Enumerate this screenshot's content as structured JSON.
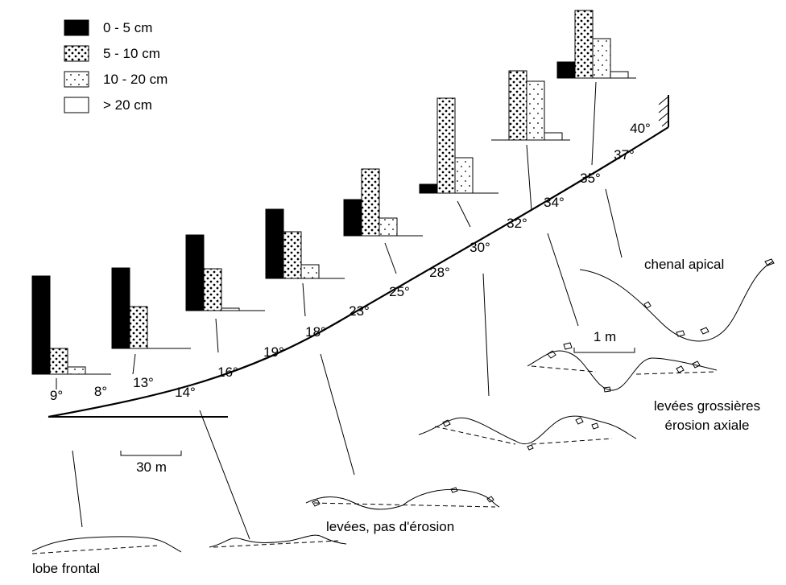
{
  "legend": [
    {
      "label": "0 - 5 cm"
    },
    {
      "label": "5 - 10 cm"
    },
    {
      "label": "10 - 20 cm"
    },
    {
      "label": "> 20 cm"
    }
  ],
  "histograms": [
    {
      "values": [
        122,
        32,
        9,
        0
      ]
    },
    {
      "values": [
        100,
        52,
        0,
        0
      ]
    },
    {
      "values": [
        94,
        52,
        3,
        0
      ]
    },
    {
      "values": [
        86,
        58,
        17,
        0
      ]
    },
    {
      "values": [
        45,
        83,
        22,
        0
      ]
    },
    {
      "values": [
        11,
        118,
        44,
        0
      ]
    },
    {
      "values": [
        0,
        86,
        73,
        9
      ]
    },
    {
      "values": [
        20,
        84,
        49,
        8
      ]
    }
  ],
  "angles": [
    "9°",
    "8°",
    "13°",
    "14°",
    "16°",
    "19°",
    "18°",
    "23°",
    "25°",
    "28°",
    "30°",
    "32°",
    "34°",
    "35°",
    "37°",
    "40°"
  ],
  "labels": {
    "lobe_frontal": "lobe frontal",
    "levees_pas_erosion": "levées, pas d'érosion",
    "levees_grossieres": "levées grossières",
    "erosion_axiale": "érosion axiale",
    "chenal_apical": "chenal apical",
    "scale_30m": "30 m",
    "scale_1m": "1 m"
  }
}
